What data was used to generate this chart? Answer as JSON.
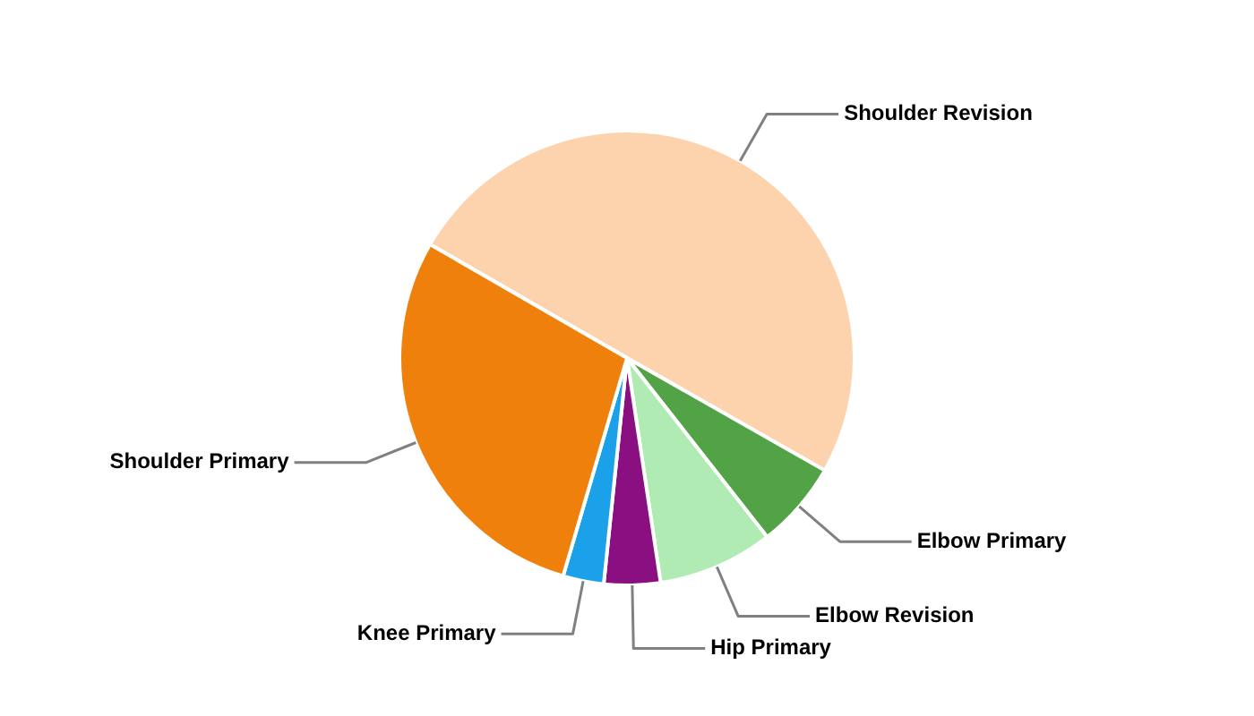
{
  "chart_data": {
    "type": "pie",
    "categories": [
      "Shoulder Revision",
      "Elbow Primary",
      "Elbow Revision",
      "Hip Primary",
      "Knee Primary",
      "Shoulder Primary"
    ],
    "values": [
      49.9,
      6.2,
      8.2,
      4.0,
      2.9,
      28.8
    ],
    "colors": [
      "#fcd3ad",
      "#52a346",
      "#b0ebb4",
      "#8a1082",
      "#1ba1ea",
      "#f0800c"
    ],
    "legend": false
  }
}
